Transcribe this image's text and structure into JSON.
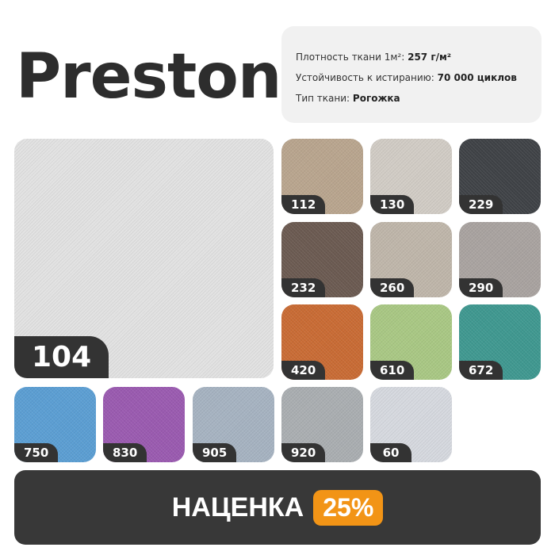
{
  "title": "Preston",
  "info": {
    "density_label": "Плотность ткани 1м²:",
    "density_value": "257 г/м²",
    "abrasion_label": "Устойчивость к истиранию:",
    "abrasion_value": "70 000 циклов",
    "type_label": "Тип ткани:",
    "type_value": "Рогожка"
  },
  "main_swatch": {
    "code": "104",
    "color": "#e2e2e2"
  },
  "swatches": [
    {
      "code": "112",
      "color": "#b9a58e"
    },
    {
      "code": "130",
      "color": "#d1ccc5"
    },
    {
      "code": "229",
      "color": "#3f4246"
    },
    {
      "code": "232",
      "color": "#6b5a51"
    },
    {
      "code": "260",
      "color": "#bfb6aa"
    },
    {
      "code": "290",
      "color": "#a9a3a0"
    },
    {
      "code": "420",
      "color": "#c96b34"
    },
    {
      "code": "610",
      "color": "#a9c884"
    },
    {
      "code": "672",
      "color": "#3f9890"
    },
    {
      "code": "750",
      "color": "#5b9ed3"
    },
    {
      "code": "830",
      "color": "#9a5ab0"
    },
    {
      "code": "905",
      "color": "#a6b3c1"
    },
    {
      "code": "920",
      "color": "#aaaeb1"
    },
    {
      "code": "60",
      "color": "#d6d9df"
    }
  ],
  "banner": {
    "label": "НАЦЕНКА",
    "percent": "25%",
    "accent": "#f29416"
  }
}
